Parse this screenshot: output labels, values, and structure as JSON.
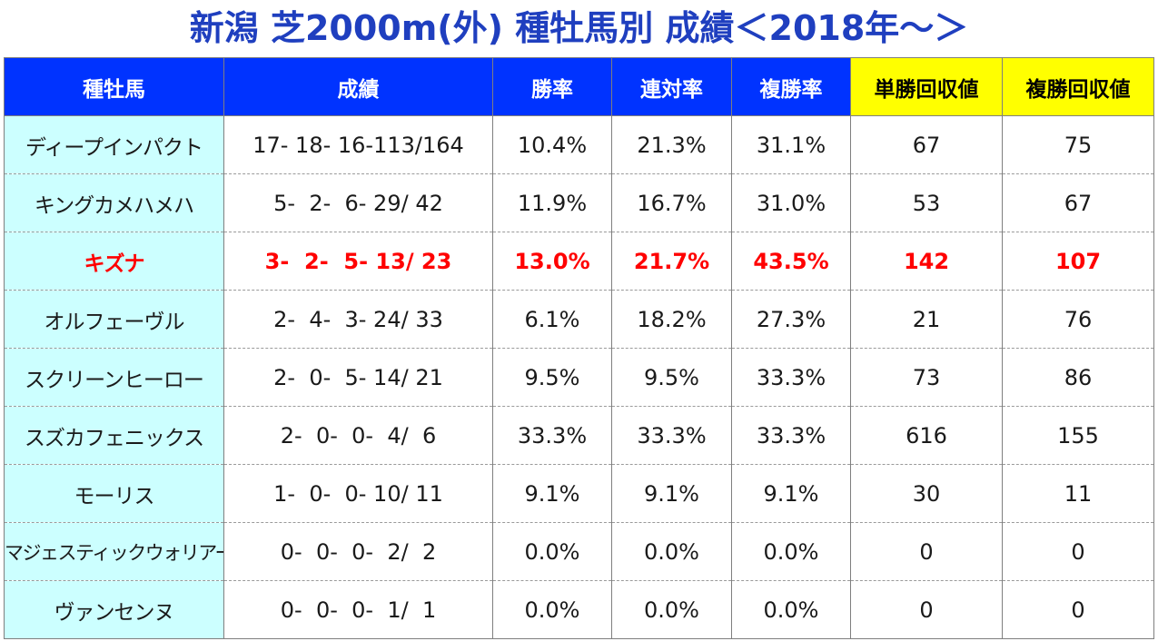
{
  "title": "新潟 芝2000m(外) 種牡馬別 成績＜2018年～＞",
  "colors": {
    "title": "#1f3fbf",
    "header_bg": "#0033ff",
    "header_highlight_bg": "#ffff00",
    "sire_cell_bg": "#ccffff",
    "emphasis_text": "#ff0000"
  },
  "headers": {
    "sire": "種牡馬",
    "record": "成績",
    "win_rate": "勝率",
    "quinella_rate": "連対率",
    "place_rate": "複勝率",
    "win_return": "単勝回収値",
    "place_return": "複勝回収値"
  },
  "rows": [
    {
      "sire": "ディープインパクト",
      "record": "17- 18- 16-113/164",
      "win_rate": "10.4%",
      "quinella_rate": "21.3%",
      "place_rate": "31.1%",
      "win_return": "67",
      "place_return": "75"
    },
    {
      "sire": "キングカメハメハ",
      "record": "5-  2-  6- 29/ 42",
      "win_rate": "11.9%",
      "quinella_rate": "16.7%",
      "place_rate": "31.0%",
      "win_return": "53",
      "place_return": "67"
    },
    {
      "sire": "キズナ",
      "record": "3-  2-  5- 13/ 23",
      "win_rate": "13.0%",
      "quinella_rate": "21.7%",
      "place_rate": "43.5%",
      "win_return": "142",
      "place_return": "107"
    },
    {
      "sire": "オルフェーヴル",
      "record": "2-  4-  3- 24/ 33",
      "win_rate": "6.1%",
      "quinella_rate": "18.2%",
      "place_rate": "27.3%",
      "win_return": "21",
      "place_return": "76"
    },
    {
      "sire": "スクリーンヒーロー",
      "record": "2-  0-  5- 14/ 21",
      "win_rate": "9.5%",
      "quinella_rate": "9.5%",
      "place_rate": "33.3%",
      "win_return": "73",
      "place_return": "86"
    },
    {
      "sire": "スズカフェニックス",
      "record": "2-  0-  0-  4/  6",
      "win_rate": "33.3%",
      "quinella_rate": "33.3%",
      "place_rate": "33.3%",
      "win_return": "616",
      "place_return": "155"
    },
    {
      "sire": "モーリス",
      "record": "1-  0-  0- 10/ 11",
      "win_rate": "9.1%",
      "quinella_rate": "9.1%",
      "place_rate": "9.1%",
      "win_return": "30",
      "place_return": "11"
    },
    {
      "sire": "マジェスティックウォリアー",
      "record": "0-  0-  0-  2/  2",
      "win_rate": "0.0%",
      "quinella_rate": "0.0%",
      "place_rate": "0.0%",
      "win_return": "0",
      "place_return": "0"
    },
    {
      "sire": "ヴァンセンヌ",
      "record": "0-  0-  0-  1/  1",
      "win_rate": "0.0%",
      "quinella_rate": "0.0%",
      "place_rate": "0.0%",
      "win_return": "0",
      "place_return": "0"
    }
  ]
}
